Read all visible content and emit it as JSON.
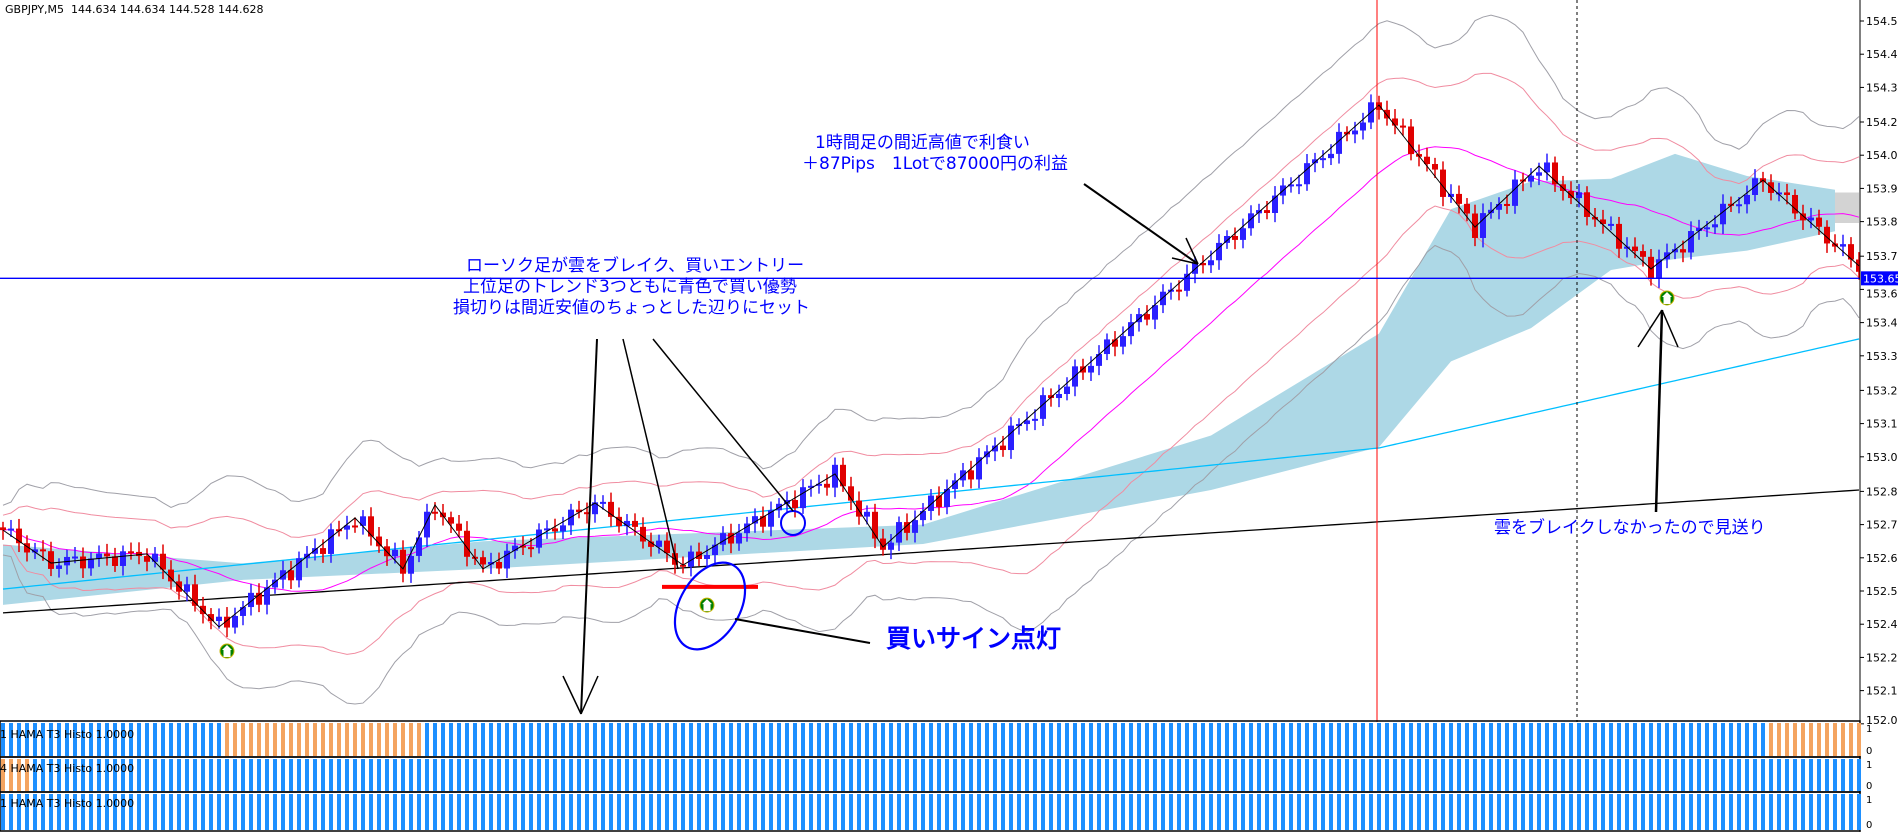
{
  "header": {
    "symbol": "GBPJPY,M5",
    "ohlc": "144.634 144.634 144.528 144.628"
  },
  "annotations": {
    "entry": [
      "ローソク足が雲をブレイク、買いエントリー",
      "上位足のトレンド3つともに青色で買い優勢",
      "損切りは間近安値のちょっとした辺りにセット"
    ],
    "takeprofit": [
      "1時間足の間近高値で利食い",
      "＋87Pips　1Lotで87000円の利益"
    ],
    "buy_sign": "買いサイン点灯",
    "skip": "雲をブレイクしなかったので見送り"
  },
  "subwindows": [
    {
      "label": "1  HAMA T3 Histo 1.0000",
      "orange_ranges": [
        [
          28,
          52
        ],
        [
          221,
          232
        ]
      ]
    },
    {
      "label": "4  HAMA T3 Histo 1.0000",
      "orange_ranges": [
        [
          0,
          3
        ]
      ]
    },
    {
      "label": "1  HAMA T3 Histo 1.0000",
      "orange_ranges": []
    }
  ],
  "sub_axis": {
    "top": "1",
    "bottom": "0"
  },
  "colors": {
    "bull": "#2a1fff",
    "bear": "#e00000",
    "cloud": "#add8e6",
    "cloud_bear": "#d3d3d3",
    "hist_up": "#1e90ff",
    "hist_down": "#f4a460",
    "ma_long": "#000000",
    "ma_mid": "#00bfff",
    "ma_short": "#ff00ff",
    "bands": "#a0a0a8",
    "annotation": "#0000ff",
    "signal": "#008000",
    "vline": "#ff0000"
  },
  "chart_data": {
    "type": "candlestick",
    "symbol": "GBPJPY",
    "timeframe": "M5",
    "bars": 233,
    "ylim": [
      152.04,
      154.58
    ],
    "y_ticks": [
      "154.580",
      "154.460",
      "154.340",
      "154.215",
      "154.095",
      "153.975",
      "153.855",
      "153.730",
      "153.610",
      "153.490",
      "153.370",
      "153.245",
      "153.125",
      "153.005",
      "152.880",
      "152.760",
      "152.640",
      "152.520",
      "152.400",
      "152.280",
      "152.160",
      "152.040"
    ],
    "current_price": "153.650",
    "zigzag_pivots": [
      [
        0,
        152.74
      ],
      [
        6,
        152.621
      ],
      [
        18,
        152.654
      ],
      [
        27,
        152.39
      ],
      [
        44,
        152.784
      ],
      [
        50,
        152.6
      ],
      [
        54,
        152.831
      ],
      [
        60,
        152.6
      ],
      [
        74,
        152.838
      ],
      [
        85,
        152.614
      ],
      [
        104,
        152.943
      ],
      [
        110,
        152.679
      ],
      [
        172,
        154.276
      ],
      [
        184,
        153.835
      ],
      [
        192,
        154.056
      ],
      [
        206,
        153.684
      ],
      [
        220,
        154.005
      ],
      [
        232,
        153.695
      ]
    ],
    "ma_long": [
      [
        0,
        152.441
      ],
      [
        232,
        152.885
      ]
    ],
    "ma_mid": [
      [
        0,
        152.527
      ],
      [
        172,
        153.037
      ],
      [
        232,
        153.431
      ]
    ],
    "cloud": [
      [
        0,
        152.688,
        152.47
      ],
      [
        30,
        152.62,
        152.56
      ],
      [
        60,
        152.7,
        152.6
      ],
      [
        115,
        152.76,
        152.69
      ],
      [
        151,
        153.082,
        152.885
      ],
      [
        172,
        153.45,
        153.04
      ],
      [
        181,
        153.9,
        153.35
      ],
      [
        191,
        154.0,
        153.47
      ],
      [
        201,
        154.01,
        153.68
      ],
      [
        209,
        154.1,
        153.72
      ],
      [
        218,
        154.02,
        153.75
      ],
      [
        229,
        153.97,
        153.82
      ]
    ],
    "cloud_bear": [
      [
        229,
        153.96,
        153.85
      ],
      [
        232,
        153.96,
        153.85
      ]
    ],
    "vertical_lines": [
      {
        "bar": 172,
        "style": "solid"
      },
      {
        "bar": 197,
        "style": "dashed"
      }
    ],
    "horizontal_line": 153.65,
    "buy_signals": [
      [
        28,
        152.303
      ],
      [
        88,
        152.469
      ],
      [
        208,
        153.579
      ]
    ],
    "stop_level": 152.535
  }
}
